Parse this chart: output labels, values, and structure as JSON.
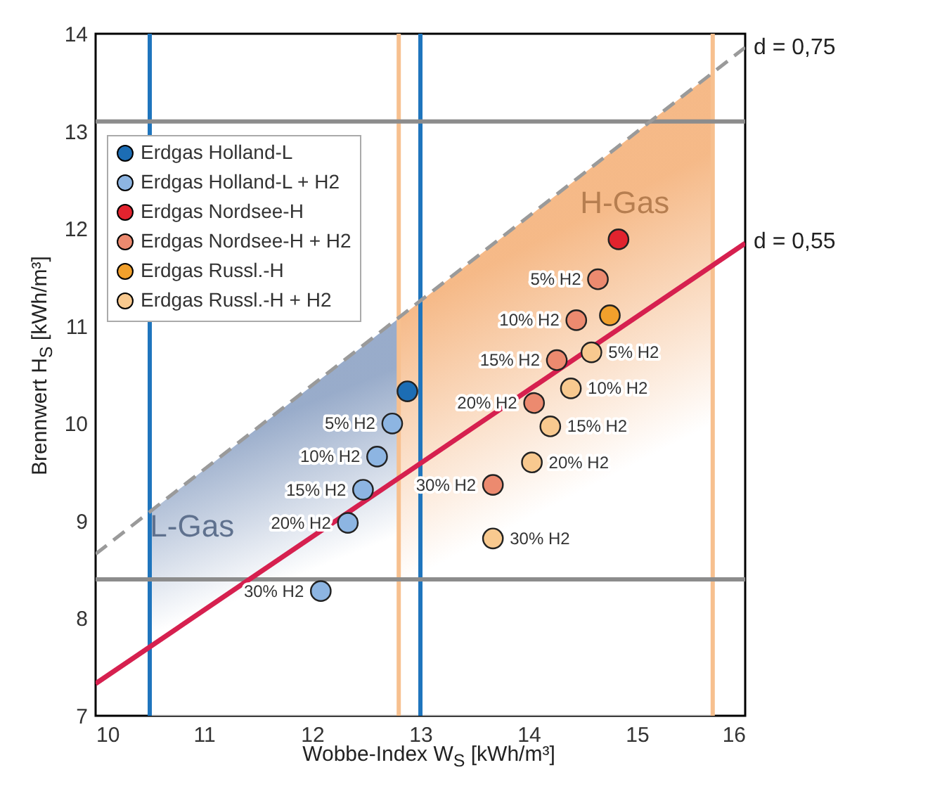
{
  "chart_data": {
    "type": "scatter",
    "xlabel": "Wobbe-Index W$_{S}$ [kWh/m³]",
    "ylabel": "Brennwert H$_{S}$ [kWh/m³]",
    "xlim": [
      10,
      16
    ],
    "xticks": [
      10,
      11,
      12,
      13,
      14,
      15,
      16
    ],
    "ylim": [
      7,
      14
    ],
    "yticks": [
      7,
      8,
      9,
      10,
      11,
      12,
      13,
      14
    ],
    "grid": false,
    "legend": "top left",
    "marker": "circle",
    "series": [
      {
        "type": "area",
        "name": "L-Gas",
        "color": "#7f97bd",
        "marker": "none",
        "x": [
          10.5,
          12.8
        ],
        "values": [
          9.09,
          11.08
        ]
      },
      {
        "type": "area",
        "name": "H-Gas",
        "color": "#f3a86a",
        "marker": "none",
        "x": [
          12.8,
          15.7
        ],
        "values": [
          11.08,
          13.6
        ]
      },
      {
        "type": "line",
        "line_style": "dashed",
        "color": "#9a9a9a",
        "marker": "none",
        "x": [
          10,
          16
        ],
        "values": [
          8.66,
          13.86
        ]
      },
      {
        "type": "scatter",
        "name": "Erdgas Holland-L",
        "color": "#1c6db4",
        "x": [
          12.88
        ],
        "values": [
          10.33
        ]
      },
      {
        "type": "scatter",
        "name": "Erdgas Holland-L + H2",
        "color": "#8db5e2",
        "x": [
          12.74,
          12.6,
          12.47,
          12.33,
          12.08
        ],
        "values": [
          10.0,
          9.66,
          9.32,
          8.98,
          8.28
        ],
        "value_labels": [
          "5% H2",
          "10% H2",
          "15% H2",
          "20% H2",
          "30% H2"
        ]
      },
      {
        "type": "scatter",
        "name": "Erdgas Nordsee-H",
        "color": "#e2232e",
        "x": [
          14.83
        ],
        "values": [
          11.89
        ]
      },
      {
        "type": "scatter",
        "name": "Erdgas Nordsee-H + H2",
        "color": "#ec8a6f",
        "x": [
          14.64,
          14.44,
          14.26,
          14.05,
          13.67
        ],
        "values": [
          11.48,
          11.06,
          10.65,
          10.21,
          9.37
        ],
        "value_labels": [
          "5% H2",
          "10% H2",
          "15% H2",
          "20% H2",
          "30% H2"
        ]
      },
      {
        "type": "scatter",
        "name": "Erdgas Russl.-H",
        "color": "#f1a02c",
        "x": [
          14.75
        ],
        "values": [
          11.11
        ]
      },
      {
        "type": "scatter",
        "name": "Erdgas Russl.-H + H2",
        "color": "#f8c98f",
        "x": [
          14.58,
          14.39,
          14.2,
          14.03,
          13.67
        ],
        "values": [
          10.73,
          10.36,
          9.97,
          9.6,
          8.82
        ],
        "value_labels": [
          "5% H2",
          "10% H2",
          "15% H2",
          "20% H2",
          "30% H2"
        ]
      },
      {
        "type": "line",
        "line_style": "solid",
        "color": "#d6204f",
        "marker": "none",
        "x": [
          10,
          16
        ],
        "values": [
          7.33,
          11.85
        ]
      }
    ],
    "ref_lines": [
      {
        "axis": "x",
        "value": 10.5,
        "color": "#1f75bd"
      },
      {
        "axis": "x",
        "value": 13,
        "color": "#1f75bd"
      },
      {
        "axis": "x",
        "value": 12.8,
        "color": "#f7c08f"
      },
      {
        "axis": "x",
        "value": 15.7,
        "color": "#f7c08f"
      },
      {
        "axis": "y",
        "value": 13.1,
        "color": "#8c8c8c"
      },
      {
        "axis": "y",
        "value": 8.4,
        "color": "#8c8c8c"
      }
    ],
    "annotations": [
      {
        "text": "d = 0,75",
        "x": 16,
        "y": 13.86
      },
      {
        "text": "d = 0,55",
        "x": 16,
        "y": 11.87
      }
    ]
  }
}
